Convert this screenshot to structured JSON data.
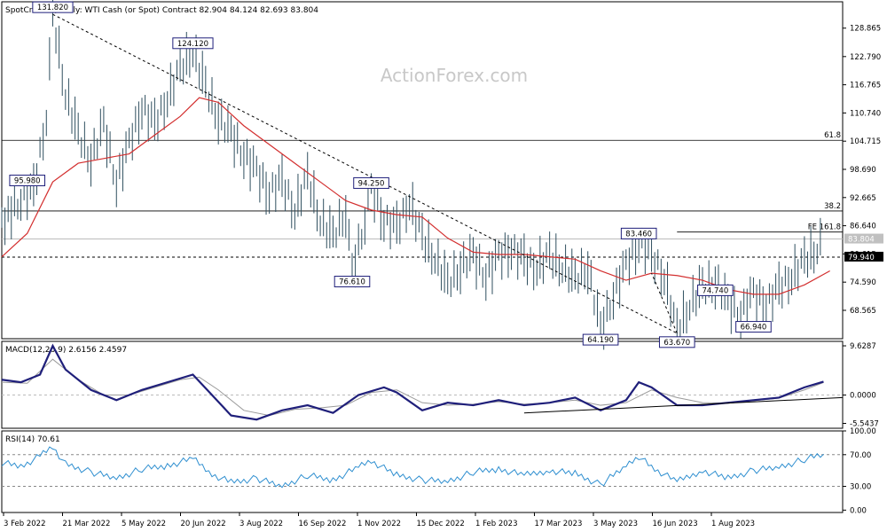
{
  "header": {
    "symbol_line": "SpotCrude.a, Daily:  WTI Cash (or Spot) Contract  82.904 84.124 82.693 83.804"
  },
  "watermark": "ActionForex.com",
  "colors": {
    "price": "#2f4f5f",
    "ma": "#d32f2f",
    "macd": "#1f1f7a",
    "macd_signal": "#9a9a9a",
    "rsi": "#2f8fd0",
    "frame": "#000000",
    "grid_dash": "#000000",
    "trend": "#000000"
  },
  "chart_data": [
    {
      "type": "line",
      "panel": "price",
      "title": "SpotCrude.a, Daily:  WTI Cash (or Spot) Contract  82.904 84.124 82.693 83.804",
      "ohlc_last": {
        "open": 82.904,
        "high": 84.124,
        "low": 82.693,
        "close": 83.804
      },
      "y_ticks": [
        128.865,
        122.79,
        116.765,
        110.74,
        104.715,
        98.69,
        92.665,
        86.64,
        80.615,
        74.59,
        68.565
      ],
      "ylim": [
        62.5,
        134.5
      ],
      "x_ticks": [
        "3 Feb 2022",
        "21 Mar 2022",
        "5 May 2022",
        "20 Jun 2022",
        "3 Aug 2022",
        "16 Sep 2022",
        "1 Nov 2022",
        "15 Dec 2022",
        "1 Feb 2023",
        "17 Mar 2023",
        "3 May 2023",
        "16 Jun 2023",
        "1 Aug 2023"
      ],
      "series": [
        {
          "name": "",
          "role": "price",
          "points": [
            [
              0,
              87.0
            ],
            [
              3,
              92.5
            ],
            [
              5,
              94.0
            ],
            [
              7,
              110.0
            ],
            [
              8,
              131.82
            ],
            [
              10,
              115.0
            ],
            [
              12,
              106.0
            ],
            [
              14,
              101.0
            ],
            [
              16,
              108.0
            ],
            [
              18,
              96.0
            ],
            [
              20,
              104.0
            ],
            [
              22,
              112.0
            ],
            [
              24,
              108.0
            ],
            [
              26,
              114.0
            ],
            [
              28,
              120.0
            ],
            [
              30,
              124.12
            ],
            [
              32,
              116.0
            ],
            [
              34,
              110.0
            ],
            [
              36,
              106.0
            ],
            [
              38,
              102.0
            ],
            [
              40,
              98.0
            ],
            [
              42,
              94.0
            ],
            [
              44,
              96.0
            ],
            [
              46,
              90.0
            ],
            [
              48,
              97.0
            ],
            [
              50,
              88.0
            ],
            [
              52,
              84.0
            ],
            [
              54,
              90.0
            ],
            [
              55,
              76.61
            ],
            [
              57,
              88.0
            ],
            [
              58,
              94.25
            ],
            [
              60,
              88.0
            ],
            [
              62,
              86.0
            ],
            [
              64,
              92.0
            ],
            [
              66,
              84.0
            ],
            [
              68,
              80.0
            ],
            [
              70,
              74.0
            ],
            [
              72,
              78.0
            ],
            [
              74,
              80.0
            ],
            [
              76,
              76.0
            ],
            [
              78,
              80.0
            ],
            [
              80,
              82.0
            ],
            [
              82,
              79.0
            ],
            [
              84,
              78.0
            ],
            [
              86,
              80.0
            ],
            [
              88,
              78.0
            ],
            [
              90,
              75.0
            ],
            [
              92,
              78.0
            ],
            [
              94,
              64.19
            ],
            [
              96,
              72.0
            ],
            [
              98,
              78.0
            ],
            [
              100,
              83.46
            ],
            [
              102,
              80.0
            ],
            [
              104,
              76.0
            ],
            [
              106,
              63.67
            ],
            [
              108,
              70.0
            ],
            [
              110,
              73.0
            ],
            [
              112,
              74.74
            ],
            [
              114,
              70.0
            ],
            [
              116,
              68.0
            ],
            [
              118,
              72.0
            ],
            [
              120,
              70.0
            ],
            [
              122,
              73.0
            ],
            [
              124,
              76.0
            ],
            [
              126,
              79.0
            ],
            [
              128,
              82.0
            ],
            [
              129,
              83.804
            ]
          ]
        },
        {
          "name": "",
          "role": "ma",
          "points": [
            [
              0,
              80.0
            ],
            [
              4,
              85.0
            ],
            [
              8,
              96.0
            ],
            [
              12,
              100.0
            ],
            [
              16,
              101.0
            ],
            [
              20,
              102.0
            ],
            [
              24,
              106.0
            ],
            [
              28,
              110.0
            ],
            [
              31,
              114.0
            ],
            [
              34,
              113.0
            ],
            [
              38,
              108.0
            ],
            [
              42,
              104.0
            ],
            [
              46,
              100.0
            ],
            [
              50,
              96.0
            ],
            [
              54,
              92.0
            ],
            [
              58,
              90.0
            ],
            [
              62,
              89.0
            ],
            [
              66,
              88.5
            ],
            [
              70,
              84.0
            ],
            [
              74,
              81.0
            ],
            [
              78,
              80.5
            ],
            [
              82,
              80.5
            ],
            [
              86,
              80.0
            ],
            [
              90,
              79.5
            ],
            [
              94,
              77.0
            ],
            [
              98,
              75.0
            ],
            [
              102,
              76.5
            ],
            [
              106,
              76.0
            ],
            [
              110,
              75.0
            ],
            [
              114,
              73.0
            ],
            [
              118,
              72.0
            ],
            [
              122,
              72.0
            ],
            [
              126,
              74.0
            ],
            [
              130,
              77.0
            ]
          ]
        }
      ],
      "trend_lines": [
        {
          "from": [
            8,
            131.82
          ],
          "to": [
            106,
            63.67
          ]
        },
        {
          "from": [
            106,
            63.67
          ],
          "to": [
            102,
            76.5
          ]
        }
      ],
      "levels": [
        {
          "value": 104.9,
          "label": "61.8"
        },
        {
          "value": 89.8,
          "label": "38.2"
        },
        {
          "value": 85.3,
          "label": "FE 161.8",
          "start": 106
        },
        {
          "value": 83.804,
          "label": "83.804",
          "style": "current"
        },
        {
          "value": 79.94,
          "label": "79.940",
          "style": "dashed"
        }
      ],
      "annotations": [
        {
          "text": "131.820",
          "x": 8,
          "y": 131.82
        },
        {
          "text": "124.120",
          "x": 30,
          "y": 124.12
        },
        {
          "text": "95.980",
          "x": 4,
          "y": 94.8
        },
        {
          "text": "94.250",
          "x": 58,
          "y": 94.25
        },
        {
          "text": "76.610",
          "x": 55,
          "y": 76.61
        },
        {
          "text": "83.460",
          "x": 100,
          "y": 83.46
        },
        {
          "text": "64.190",
          "x": 94,
          "y": 64.19
        },
        {
          "text": "63.670",
          "x": 106,
          "y": 63.67
        },
        {
          "text": "74.740",
          "x": 112,
          "y": 74.74
        },
        {
          "text": "66.940",
          "x": 118,
          "y": 66.94
        }
      ]
    },
    {
      "type": "line",
      "panel": "macd",
      "title": "MACD(12,26,9) 2.6156 2.4597",
      "y_ticks": [
        9.6287,
        0.0,
        -5.5437
      ],
      "ylim": [
        -6.5,
        10.5
      ],
      "series": [
        {
          "name": "",
          "role": "macd",
          "points": [
            [
              0,
              3.0
            ],
            [
              3,
              2.5
            ],
            [
              6,
              4.0
            ],
            [
              8,
              9.6287
            ],
            [
              10,
              5.0
            ],
            [
              14,
              1.0
            ],
            [
              18,
              -1.0
            ],
            [
              22,
              1.0
            ],
            [
              26,
              2.5
            ],
            [
              30,
              4.0
            ],
            [
              33,
              0.0
            ],
            [
              36,
              -4.0
            ],
            [
              40,
              -4.8
            ],
            [
              44,
              -3.0
            ],
            [
              48,
              -2.0
            ],
            [
              52,
              -3.5
            ],
            [
              56,
              0.0
            ],
            [
              60,
              1.5
            ],
            [
              62,
              0.5
            ],
            [
              66,
              -3.0
            ],
            [
              70,
              -1.5
            ],
            [
              74,
              -2.0
            ],
            [
              78,
              -1.0
            ],
            [
              82,
              -2.0
            ],
            [
              86,
              -1.5
            ],
            [
              90,
              -0.5
            ],
            [
              94,
              -3.0
            ],
            [
              98,
              -1.0
            ],
            [
              100,
              2.5
            ],
            [
              102,
              1.5
            ],
            [
              106,
              -2.0
            ],
            [
              110,
              -2.0
            ],
            [
              114,
              -1.5
            ],
            [
              118,
              -1.0
            ],
            [
              122,
              -0.5
            ],
            [
              126,
              1.5
            ],
            [
              129,
              2.6156
            ]
          ]
        },
        {
          "name": "",
          "role": "signal",
          "points": [
            [
              0,
              2.5
            ],
            [
              4,
              2.3
            ],
            [
              8,
              7.0
            ],
            [
              12,
              3.0
            ],
            [
              16,
              0.0
            ],
            [
              20,
              0.0
            ],
            [
              24,
              1.5
            ],
            [
              28,
              3.0
            ],
            [
              31,
              3.5
            ],
            [
              34,
              1.0
            ],
            [
              38,
              -3.0
            ],
            [
              42,
              -4.0
            ],
            [
              46,
              -2.8
            ],
            [
              50,
              -2.5
            ],
            [
              54,
              -2.0
            ],
            [
              58,
              0.5
            ],
            [
              62,
              1.0
            ],
            [
              66,
              -1.5
            ],
            [
              70,
              -2.0
            ],
            [
              74,
              -1.8
            ],
            [
              78,
              -1.3
            ],
            [
              82,
              -1.8
            ],
            [
              86,
              -1.5
            ],
            [
              90,
              -1.0
            ],
            [
              94,
              -2.0
            ],
            [
              98,
              -1.5
            ],
            [
              102,
              1.0
            ],
            [
              106,
              -0.5
            ],
            [
              110,
              -1.5
            ],
            [
              114,
              -1.6
            ],
            [
              118,
              -1.1
            ],
            [
              122,
              -0.6
            ],
            [
              126,
              1.0
            ],
            [
              129,
              2.4597
            ]
          ]
        }
      ],
      "trend_lines": [
        {
          "from": [
            82,
            -3.5
          ],
          "to": [
            132,
            -0.5
          ]
        }
      ]
    },
    {
      "type": "line",
      "panel": "rsi",
      "title": "RSI(14) 70.61",
      "y_ticks": [
        100.0,
        70.0,
        30.0,
        0.0
      ],
      "ylim": [
        -3,
        100
      ],
      "levels": [
        70,
        30
      ],
      "series": [
        {
          "name": "",
          "role": "rsi",
          "points": [
            [
              0,
              60
            ],
            [
              3,
              55
            ],
            [
              6,
              68
            ],
            [
              8,
              80
            ],
            [
              10,
              58
            ],
            [
              14,
              48
            ],
            [
              18,
              40
            ],
            [
              22,
              52
            ],
            [
              26,
              56
            ],
            [
              30,
              65
            ],
            [
              33,
              45
            ],
            [
              36,
              35
            ],
            [
              40,
              40
            ],
            [
              44,
              30
            ],
            [
              48,
              44
            ],
            [
              52,
              38
            ],
            [
              56,
              54
            ],
            [
              58,
              62
            ],
            [
              62,
              44
            ],
            [
              66,
              38
            ],
            [
              70,
              36
            ],
            [
              74,
              48
            ],
            [
              78,
              52
            ],
            [
              82,
              44
            ],
            [
              86,
              50
            ],
            [
              90,
              46
            ],
            [
              94,
              32
            ],
            [
              98,
              56
            ],
            [
              100,
              68
            ],
            [
              102,
              54
            ],
            [
              106,
              36
            ],
            [
              110,
              50
            ],
            [
              114,
              40
            ],
            [
              118,
              50
            ],
            [
              122,
              54
            ],
            [
              126,
              64
            ],
            [
              129,
              70.61
            ]
          ]
        }
      ]
    }
  ]
}
